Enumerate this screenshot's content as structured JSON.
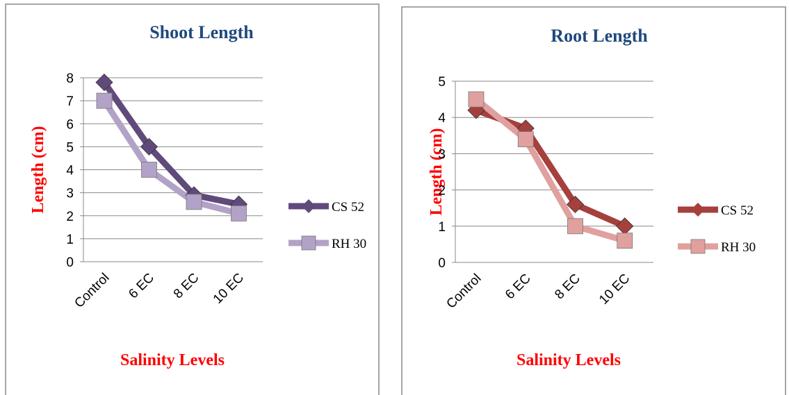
{
  "chart_data": [
    {
      "type": "line",
      "title": "Shoot Length",
      "xlabel": "Salinity Levels",
      "ylabel": "Length (cm)",
      "categories": [
        "Control",
        "6 EC",
        "8 EC",
        "10 EC"
      ],
      "series": [
        {
          "name": "CS 52",
          "color": "#604a7b",
          "marker": "diamond",
          "values": [
            7.8,
            5,
            2.9,
            2.5
          ]
        },
        {
          "name": "RH 30",
          "color": "#b3a2c7",
          "marker": "square",
          "values": [
            7,
            4,
            2.6,
            2.1
          ]
        }
      ],
      "ylim": [
        0,
        8
      ],
      "yticks": [
        0,
        1,
        2,
        3,
        4,
        5,
        6,
        7,
        8
      ],
      "grid": true,
      "legend": "right"
    },
    {
      "type": "line",
      "title": "Root Length",
      "xlabel": "Salinity Levels",
      "ylabel": "Length (cm)",
      "categories": [
        "Control",
        "6 EC",
        "8 EC",
        "10 EC"
      ],
      "series": [
        {
          "name": "CS 52",
          "color": "#a5403d",
          "marker": "diamond",
          "values": [
            4.2,
            3.7,
            1.6,
            1.0
          ]
        },
        {
          "name": "RH 30",
          "color": "#e0a09e",
          "marker": "square",
          "values": [
            4.5,
            3.4,
            1.0,
            0.6
          ]
        }
      ],
      "ylim": [
        0,
        5
      ],
      "yticks": [
        0,
        1,
        2,
        3,
        4,
        5
      ],
      "grid": true,
      "legend": "right"
    }
  ]
}
